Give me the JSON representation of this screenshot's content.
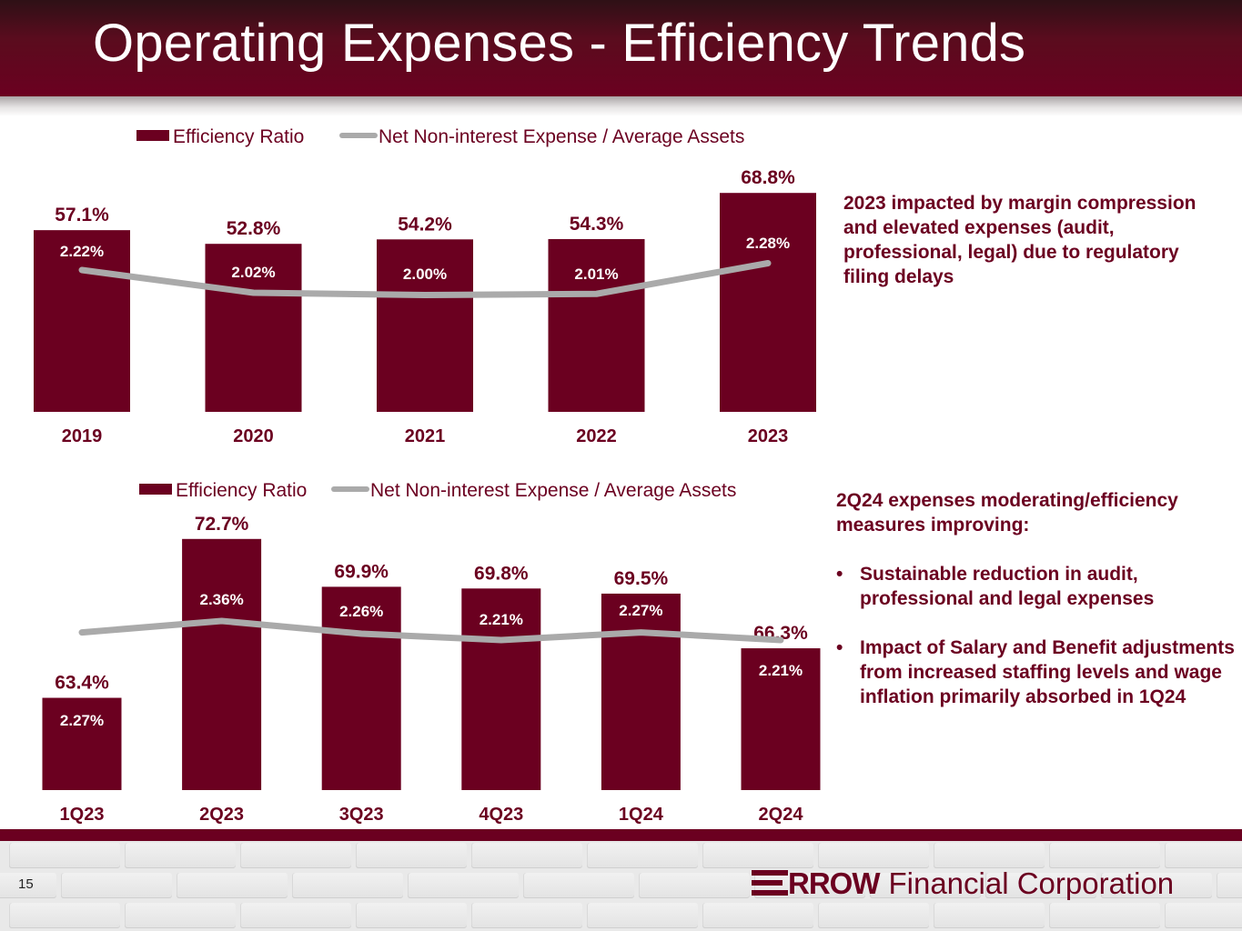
{
  "header": {
    "title": "Operating Expenses - Efficiency Trends"
  },
  "colors": {
    "brand": "#6b0020",
    "line": "#aaaaaa",
    "text_white": "#ffffff"
  },
  "chart_data": [
    {
      "type": "bar",
      "title": "",
      "categories": [
        "2019",
        "2020",
        "2021",
        "2022",
        "2023"
      ],
      "series": [
        {
          "name": "Efficiency Ratio",
          "kind": "bar",
          "values": [
            57.1,
            52.8,
            54.2,
            54.3,
            68.8
          ],
          "labels": [
            "57.1%",
            "52.8%",
            "54.2%",
            "54.3%",
            "68.8%"
          ],
          "color": "#6b0020"
        },
        {
          "name": "Net Non-interest Expense / Average Assets",
          "kind": "line",
          "values": [
            2.22,
            2.02,
            2.0,
            2.01,
            2.28
          ],
          "labels": [
            "2.22%",
            "2.02%",
            "2.00%",
            "2.01%",
            "2.28%"
          ],
          "color": "#aaaaaa"
        }
      ],
      "legend": [
        "Efficiency Ratio",
        "Net Non-interest Expense / Average Assets"
      ],
      "legend_position": "top",
      "xlabel": "",
      "ylabel": "",
      "ylim": [
        0,
        75
      ],
      "ylim_line": [
        0,
        3
      ],
      "grid": false
    },
    {
      "type": "bar",
      "title": "",
      "categories": [
        "1Q23",
        "2Q23",
        "3Q23",
        "4Q23",
        "1Q24",
        "2Q24"
      ],
      "series": [
        {
          "name": "Efficiency Ratio",
          "kind": "bar",
          "values": [
            63.4,
            72.7,
            69.9,
            69.8,
            69.5,
            66.3
          ],
          "labels": [
            "63.4%",
            "72.7%",
            "69.9%",
            "69.8%",
            "69.5%",
            "66.3%"
          ],
          "color": "#6b0020"
        },
        {
          "name": "Net Non-interest Expense / Average Assets",
          "kind": "line",
          "values": [
            2.27,
            2.36,
            2.26,
            2.21,
            2.27,
            2.21
          ],
          "labels": [
            "2.27%",
            "2.36%",
            "2.26%",
            "2.21%",
            "2.27%",
            "2.21%"
          ],
          "color": "#aaaaaa"
        }
      ],
      "legend": [
        "Efficiency Ratio",
        "Net Non-interest Expense / Average Assets"
      ],
      "legend_position": "top",
      "xlabel": "",
      "ylabel": "",
      "ylim": [
        58,
        77
      ],
      "ylim_line": [
        0,
        3
      ],
      "grid": false
    }
  ],
  "notes": {
    "annual": "2023 impacted by margin compression and elevated expenses (audit, professional, legal) due to regulatory filing delays",
    "quarterly_heading": "2Q24 expenses moderating/efficiency measures improving:",
    "quarterly_bullets": [
      "Sustainable reduction in audit, professional and legal expenses",
      "Impact of Salary and Benefit adjustments from increased staffing levels and wage inflation primarily absorbed in 1Q24"
    ],
    "bullet_glyph": "•"
  },
  "footer": {
    "page_number": "15",
    "logo_mark": "arrow-stripes-icon",
    "logo_word": "RROW",
    "logo_rest": "Financial Corporation"
  }
}
